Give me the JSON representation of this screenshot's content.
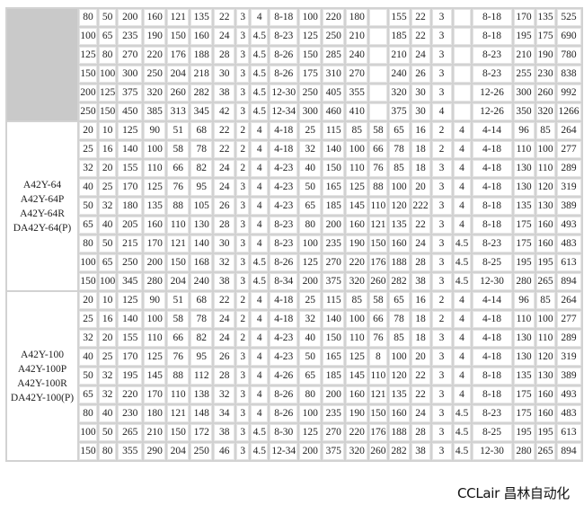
{
  "groups": [
    {
      "models": [],
      "rows": [
        [
          "80",
          "50",
          "200",
          "160",
          "121",
          "135",
          "22",
          "3",
          "4",
          "8-18",
          "100",
          "220",
          "180",
          "",
          "155",
          "22",
          "3",
          "",
          "8-18",
          "170",
          "135",
          "525"
        ],
        [
          "100",
          "65",
          "235",
          "190",
          "150",
          "160",
          "24",
          "3",
          "4.5",
          "8-23",
          "125",
          "250",
          "210",
          "",
          "185",
          "22",
          "3",
          "",
          "8-18",
          "195",
          "175",
          "690"
        ],
        [
          "125",
          "80",
          "270",
          "220",
          "176",
          "188",
          "28",
          "3",
          "4.5",
          "8-26",
          "150",
          "285",
          "240",
          "",
          "210",
          "24",
          "3",
          "",
          "8-23",
          "210",
          "190",
          "780"
        ],
        [
          "150",
          "100",
          "300",
          "250",
          "204",
          "218",
          "30",
          "3",
          "4.5",
          "8-26",
          "175",
          "310",
          "270",
          "",
          "240",
          "26",
          "3",
          "",
          "8-23",
          "255",
          "230",
          "838"
        ],
        [
          "200",
          "125",
          "375",
          "320",
          "260",
          "282",
          "38",
          "3",
          "4.5",
          "12-30",
          "250",
          "405",
          "355",
          "",
          "320",
          "30",
          "3",
          "",
          "12-26",
          "300",
          "260",
          "992"
        ],
        [
          "250",
          "150",
          "450",
          "385",
          "313",
          "345",
          "42",
          "3",
          "4.5",
          "12-34",
          "300",
          "460",
          "410",
          "",
          "375",
          "30",
          "4",
          "",
          "12-26",
          "350",
          "320",
          "1266"
        ]
      ]
    },
    {
      "models": [
        "A42Y-64",
        "A42Y-64P",
        "A42Y-64R",
        "DA42Y-64(P)"
      ],
      "rows": [
        [
          "20",
          "10",
          "125",
          "90",
          "51",
          "68",
          "22",
          "2",
          "4",
          "4-18",
          "25",
          "115",
          "85",
          "58",
          "65",
          "16",
          "2",
          "4",
          "4-14",
          "96",
          "85",
          "264"
        ],
        [
          "25",
          "16",
          "140",
          "100",
          "58",
          "78",
          "22",
          "2",
          "4",
          "4-18",
          "32",
          "140",
          "100",
          "66",
          "78",
          "18",
          "2",
          "4",
          "4-18",
          "110",
          "100",
          "277"
        ],
        [
          "32",
          "20",
          "155",
          "110",
          "66",
          "82",
          "24",
          "2",
          "4",
          "4-23",
          "40",
          "150",
          "110",
          "76",
          "85",
          "18",
          "3",
          "4",
          "4-18",
          "130",
          "110",
          "289"
        ],
        [
          "40",
          "25",
          "170",
          "125",
          "76",
          "95",
          "24",
          "3",
          "4",
          "4-23",
          "50",
          "165",
          "125",
          "88",
          "100",
          "20",
          "3",
          "4",
          "4-18",
          "130",
          "120",
          "319"
        ],
        [
          "50",
          "32",
          "180",
          "135",
          "88",
          "105",
          "26",
          "3",
          "4",
          "4-23",
          "65",
          "185",
          "145",
          "110",
          "120",
          "222",
          "3",
          "4",
          "8-18",
          "135",
          "130",
          "389"
        ],
        [
          "65",
          "40",
          "205",
          "160",
          "110",
          "130",
          "28",
          "3",
          "4",
          "8-23",
          "80",
          "200",
          "160",
          "121",
          "135",
          "22",
          "3",
          "4",
          "8-18",
          "175",
          "160",
          "493"
        ],
        [
          "80",
          "50",
          "215",
          "170",
          "121",
          "140",
          "30",
          "3",
          "4",
          "8-23",
          "100",
          "235",
          "190",
          "150",
          "160",
          "24",
          "3",
          "4.5",
          "8-23",
          "175",
          "160",
          "483"
        ],
        [
          "100",
          "65",
          "250",
          "200",
          "150",
          "168",
          "32",
          "3",
          "4.5",
          "8-26",
          "125",
          "270",
          "220",
          "176",
          "188",
          "28",
          "3",
          "4.5",
          "8-25",
          "195",
          "195",
          "613"
        ],
        [
          "150",
          "100",
          "345",
          "280",
          "204",
          "240",
          "38",
          "3",
          "4.5",
          "8-34",
          "200",
          "375",
          "320",
          "260",
          "282",
          "38",
          "3",
          "4.5",
          "12-30",
          "280",
          "265",
          "894"
        ]
      ]
    },
    {
      "models": [
        "A42Y-100",
        "A42Y-100P",
        "A42Y-100R",
        "DA42Y-100(P)"
      ],
      "rows": [
        [
          "20",
          "10",
          "125",
          "90",
          "51",
          "68",
          "22",
          "2",
          "4",
          "4-18",
          "25",
          "115",
          "85",
          "58",
          "65",
          "16",
          "2",
          "4",
          "4-14",
          "96",
          "85",
          "264"
        ],
        [
          "25",
          "16",
          "140",
          "100",
          "58",
          "78",
          "24",
          "2",
          "4",
          "4-18",
          "32",
          "140",
          "100",
          "66",
          "78",
          "18",
          "2",
          "4",
          "4-18",
          "110",
          "100",
          "277"
        ],
        [
          "32",
          "20",
          "155",
          "110",
          "66",
          "82",
          "24",
          "2",
          "4",
          "4-23",
          "40",
          "150",
          "110",
          "76",
          "85",
          "18",
          "3",
          "4",
          "4-18",
          "130",
          "110",
          "289"
        ],
        [
          "40",
          "25",
          "170",
          "125",
          "76",
          "95",
          "26",
          "3",
          "4",
          "4-23",
          "50",
          "165",
          "125",
          "8",
          "100",
          "20",
          "3",
          "4",
          "4-18",
          "130",
          "120",
          "319"
        ],
        [
          "50",
          "32",
          "195",
          "145",
          "88",
          "112",
          "28",
          "3",
          "4",
          "4-26",
          "65",
          "185",
          "145",
          "110",
          "120",
          "22",
          "3",
          "4",
          "8-18",
          "135",
          "130",
          "389"
        ],
        [
          "65",
          "32",
          "220",
          "170",
          "110",
          "138",
          "32",
          "3",
          "4",
          "8-26",
          "80",
          "200",
          "160",
          "121",
          "135",
          "22",
          "3",
          "4",
          "8-18",
          "175",
          "160",
          "493"
        ],
        [
          "80",
          "40",
          "230",
          "180",
          "121",
          "148",
          "34",
          "3",
          "4",
          "8-26",
          "100",
          "235",
          "190",
          "150",
          "160",
          "24",
          "3",
          "4.5",
          "8-23",
          "175",
          "160",
          "483"
        ],
        [
          "100",
          "50",
          "265",
          "210",
          "150",
          "172",
          "38",
          "3",
          "4.5",
          "8-30",
          "125",
          "270",
          "220",
          "176",
          "188",
          "28",
          "3",
          "4.5",
          "8-25",
          "195",
          "195",
          "613"
        ],
        [
          "150",
          "80",
          "355",
          "290",
          "204",
          "250",
          "46",
          "3",
          "4.5",
          "12-34",
          "200",
          "375",
          "320",
          "260",
          "282",
          "38",
          "3",
          "4.5",
          "12-30",
          "280",
          "265",
          "894"
        ]
      ]
    }
  ],
  "watermark": "CCLair 昌林自动化"
}
